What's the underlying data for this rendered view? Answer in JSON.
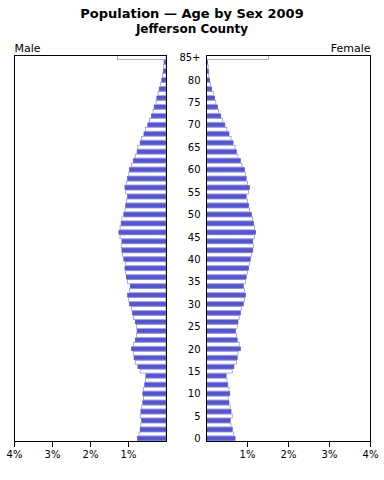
{
  "chart_data": {
    "type": "bar",
    "orientation": "horizontal",
    "title": "Population — Age by Sex 2009",
    "subtitle": "Jefferson County",
    "categories": [
      "0",
      null,
      null,
      null,
      null,
      "5",
      null,
      null,
      null,
      null,
      "10",
      null,
      null,
      null,
      null,
      "15",
      null,
      null,
      null,
      null,
      "20",
      null,
      null,
      null,
      null,
      "25",
      null,
      null,
      null,
      null,
      "30",
      null,
      null,
      null,
      null,
      "35",
      null,
      null,
      null,
      null,
      "40",
      null,
      null,
      null,
      null,
      "45",
      null,
      null,
      null,
      null,
      "50",
      null,
      null,
      null,
      null,
      "55",
      null,
      null,
      null,
      null,
      "60",
      null,
      null,
      null,
      null,
      "65",
      null,
      null,
      null,
      null,
      "70",
      null,
      null,
      null,
      null,
      "75",
      null,
      null,
      null,
      null,
      "80",
      null,
      null,
      null,
      null,
      "85+"
    ],
    "color": "#5555cc",
    "xlim": [
      0,
      4
    ],
    "xticks": [
      {
        "value": 1,
        "label": "1%"
      },
      {
        "value": 2,
        "label": "2%"
      },
      {
        "value": 3,
        "label": "3%"
      },
      {
        "value": 4,
        "label": "4%"
      }
    ],
    "series": [
      {
        "name": "Male",
        "colors": [
          "#5555cc",
          "#8888dd",
          "#5555cc",
          "#8888dd",
          "#5555cc",
          "#8888dd",
          "#5555cc",
          "#8888dd",
          "#5555cc",
          "#8888dd",
          "#5555cc",
          "#8888dd",
          "#5555cc",
          "#8888dd",
          "#5555cc",
          "#8888dd",
          "#5555cc",
          "#8888dd",
          "#5555cc",
          "#8888dd",
          "#5555cc",
          "#8888dd",
          "#5555cc",
          "#8888dd",
          "#5555cc",
          "#8888dd",
          "#5555cc",
          "#8888dd",
          "#5555cc",
          "#8888dd",
          "#5555cc",
          "#8888dd",
          "#5555cc",
          "#8888dd",
          "#5555cc",
          "#8888dd",
          "#5555cc",
          "#8888dd",
          "#5555cc",
          "#8888dd",
          "#5555cc",
          "#8888dd",
          "#5555cc",
          "#8888dd",
          "#5555cc",
          "#8888dd",
          "#5555cc",
          "#8888dd",
          "#5555cc",
          "#8888dd",
          "#5555cc",
          "#8888dd",
          "#5555cc",
          "#8888dd",
          "#5555cc",
          "#8888dd",
          "#5555cc",
          "#8888dd",
          "#5555cc",
          "#8888dd",
          "#5555cc",
          "#8888dd",
          "#5555cc",
          "#8888dd",
          "#5555cc",
          "#8888dd",
          "#5555cc",
          "#8888dd",
          "#5555cc",
          "#8888dd",
          "#5555cc",
          "#8888dd",
          "#5555cc",
          "#8888dd",
          "#5555cc",
          "#8888dd",
          "#5555cc",
          "#8888dd",
          "#5555cc",
          "#8888dd",
          "#5555cc",
          "#8888dd",
          "#5555cc",
          "#8888dd",
          "#5555cc",
          "#8888dd"
        ],
        "values": [
          0.75,
          0.71,
          0.68,
          0.66,
          0.64,
          0.68,
          0.66,
          0.64,
          0.61,
          0.59,
          0.61,
          0.59,
          0.56,
          0.54,
          0.53,
          0.68,
          0.74,
          0.81,
          0.84,
          0.86,
          0.91,
          0.86,
          0.81,
          0.78,
          0.76,
          0.78,
          0.81,
          0.86,
          0.88,
          0.91,
          0.96,
          0.98,
          1.01,
          0.96,
          0.94,
          1.01,
          1.04,
          1.06,
          1.08,
          1.06,
          1.11,
          1.14,
          1.16,
          1.18,
          1.16,
          1.21,
          1.24,
          1.21,
          1.18,
          1.16,
          1.11,
          1.08,
          1.06,
          1.04,
          1.01,
          1.06,
          1.08,
          1.04,
          1.01,
          0.98,
          0.96,
          0.91,
          0.86,
          0.81,
          0.76,
          0.74,
          0.68,
          0.64,
          0.58,
          0.54,
          0.48,
          0.44,
          0.38,
          0.34,
          0.31,
          0.26,
          0.24,
          0.21,
          0.18,
          0.14,
          0.11,
          0.09,
          0.07,
          0.06,
          0.05,
          1.28
        ]
      },
      {
        "name": "Female",
        "colors": [
          "#5555cc",
          "#8888dd",
          "#5555cc",
          "#8888dd",
          "#5555cc",
          "#8888dd",
          "#5555cc",
          "#8888dd",
          "#5555cc",
          "#8888dd",
          "#5555cc",
          "#8888dd",
          "#5555cc",
          "#8888dd",
          "#5555cc",
          "#8888dd",
          "#5555cc",
          "#8888dd",
          "#5555cc",
          "#8888dd",
          "#5555cc",
          "#8888dd",
          "#5555cc",
          "#8888dd",
          "#5555cc",
          "#8888dd",
          "#5555cc",
          "#8888dd",
          "#5555cc",
          "#8888dd",
          "#5555cc",
          "#8888dd",
          "#5555cc",
          "#8888dd",
          "#5555cc",
          "#8888dd",
          "#5555cc",
          "#8888dd",
          "#5555cc",
          "#8888dd",
          "#5555cc",
          "#8888dd",
          "#5555cc",
          "#8888dd",
          "#5555cc",
          "#8888dd",
          "#5555cc",
          "#8888dd",
          "#5555cc",
          "#8888dd",
          "#5555cc",
          "#8888dd",
          "#5555cc",
          "#8888dd",
          "#5555cc",
          "#8888dd",
          "#5555cc",
          "#8888dd",
          "#5555cc",
          "#8888dd",
          "#5555cc",
          "#8888dd",
          "#5555cc",
          "#8888dd",
          "#5555cc",
          "#8888dd",
          "#5555cc",
          "#8888dd",
          "#5555cc",
          "#8888dd",
          "#5555cc",
          "#8888dd",
          "#5555cc",
          "#8888dd",
          "#5555cc",
          "#8888dd",
          "#5555cc",
          "#8888dd",
          "#5555cc",
          "#8888dd",
          "#5555cc",
          "#8888dd",
          "#5555cc",
          "#8888dd",
          "#5555cc",
          "#8888dd"
        ],
        "values": [
          0.71,
          0.67,
          0.64,
          0.61,
          0.59,
          0.64,
          0.61,
          0.59,
          0.56,
          0.54,
          0.58,
          0.56,
          0.53,
          0.51,
          0.49,
          0.64,
          0.68,
          0.74,
          0.76,
          0.78,
          0.84,
          0.81,
          0.76,
          0.74,
          0.72,
          0.76,
          0.78,
          0.81,
          0.84,
          0.86,
          0.91,
          0.94,
          0.96,
          0.94,
          0.91,
          0.96,
          0.98,
          1.01,
          1.04,
          1.06,
          1.08,
          1.11,
          1.14,
          1.16,
          1.14,
          1.18,
          1.21,
          1.18,
          1.16,
          1.14,
          1.11,
          1.06,
          1.04,
          1.01,
          0.98,
          1.04,
          1.06,
          1.01,
          0.98,
          0.96,
          0.94,
          0.88,
          0.84,
          0.78,
          0.74,
          0.71,
          0.66,
          0.61,
          0.56,
          0.51,
          0.46,
          0.41,
          0.36,
          0.31,
          0.28,
          0.24,
          0.21,
          0.18,
          0.14,
          0.11,
          0.09,
          0.07,
          0.06,
          0.05,
          0.04,
          1.52
        ]
      }
    ]
  }
}
